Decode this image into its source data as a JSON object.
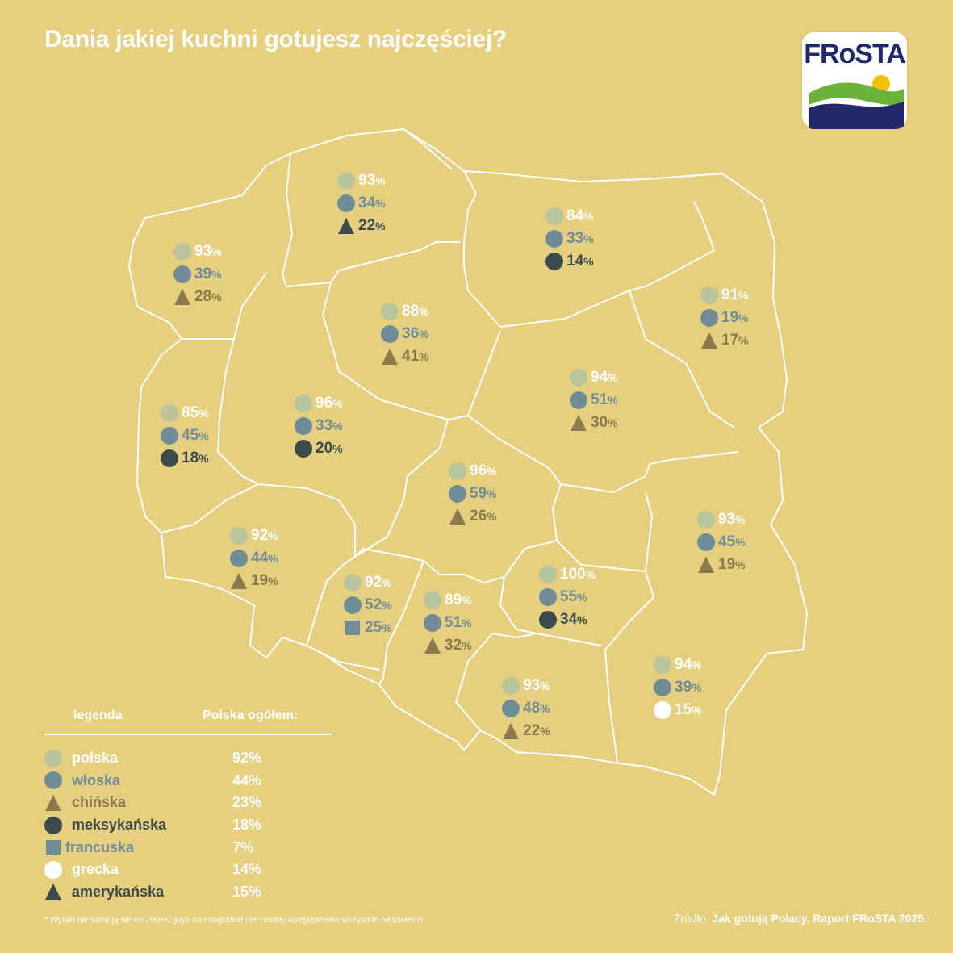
{
  "title": "Dania jakiej kuchni gotujesz najczęściej?",
  "logo": {
    "text": "FRoSTA"
  },
  "colors": {
    "background": "#e6cf7f",
    "border": "#ffffff",
    "polska": "#b9c39c",
    "wloska": "#6f8c97",
    "chinska": "#8a7a4c",
    "meksykanska": "#3d4a4c",
    "francuska": "#6f8c97",
    "grecka": "#ffffff",
    "amerykanska": "#3d4a4c"
  },
  "cuisines": {
    "polska": {
      "label": "polska",
      "shape": "circle",
      "color": "#b9c39c",
      "text_color": "#ffffff"
    },
    "wloska": {
      "label": "włoska",
      "shape": "circle",
      "color": "#6f8c97",
      "text_color": "#6f8c97"
    },
    "chinska": {
      "label": "chińska",
      "shape": "triangle",
      "color": "#8a7a4c",
      "text_color": "#8a7a4c"
    },
    "meksykanska": {
      "label": "meksykańska",
      "shape": "circle",
      "color": "#3d4a4c",
      "text_color": "#3d4a4c"
    },
    "francuska": {
      "label": "francuska",
      "shape": "square",
      "color": "#6f8c97",
      "text_color": "#6f8c97"
    },
    "grecka": {
      "label": "grecka",
      "shape": "circle",
      "color": "#ffffff",
      "text_color": "#ffffff"
    },
    "amerykanska": {
      "label": "amerykańska",
      "shape": "triangle",
      "color": "#3d4a4c",
      "text_color": "#3d4a4c"
    }
  },
  "legend": {
    "header_left": "legenda",
    "header_right": "Polska ogółem:",
    "items": [
      {
        "key": "polska",
        "value": "92%"
      },
      {
        "key": "wloska",
        "value": "44%"
      },
      {
        "key": "chinska",
        "value": "23%"
      },
      {
        "key": "meksykanska",
        "value": "18%"
      },
      {
        "key": "francuska",
        "value": "7%"
      },
      {
        "key": "grecka",
        "value": "14%"
      },
      {
        "key": "amerykanska",
        "value": "15%"
      }
    ]
  },
  "regions": [
    {
      "id": "pomorskie",
      "stats": [
        [
          "polska",
          "93"
        ],
        [
          "wloska",
          "34"
        ],
        [
          "amerykanska",
          "22"
        ]
      ]
    },
    {
      "id": "zachodniopomorskie",
      "stats": [
        [
          "polska",
          "93"
        ],
        [
          "wloska",
          "39"
        ],
        [
          "chinska",
          "28"
        ]
      ]
    },
    {
      "id": "warminsko-mazurskie",
      "stats": [
        [
          "polska",
          "84"
        ],
        [
          "wloska",
          "33"
        ],
        [
          "meksykanska",
          "14"
        ]
      ]
    },
    {
      "id": "podlaskie",
      "stats": [
        [
          "polska",
          "91"
        ],
        [
          "wloska",
          "19"
        ],
        [
          "chinska",
          "17"
        ]
      ]
    },
    {
      "id": "kujawsko-pomorskie",
      "stats": [
        [
          "polska",
          "88"
        ],
        [
          "wloska",
          "36"
        ],
        [
          "chinska",
          "41"
        ]
      ]
    },
    {
      "id": "mazowieckie",
      "stats": [
        [
          "polska",
          "94"
        ],
        [
          "wloska",
          "51"
        ],
        [
          "chinska",
          "30"
        ]
      ]
    },
    {
      "id": "lubuskie",
      "stats": [
        [
          "polska",
          "85"
        ],
        [
          "wloska",
          "45"
        ],
        [
          "meksykanska",
          "18"
        ]
      ]
    },
    {
      "id": "wielkopolskie",
      "stats": [
        [
          "polska",
          "96"
        ],
        [
          "wloska",
          "33"
        ],
        [
          "meksykanska",
          "20"
        ]
      ]
    },
    {
      "id": "lodzkie",
      "stats": [
        [
          "polska",
          "96"
        ],
        [
          "wloska",
          "59"
        ],
        [
          "chinska",
          "26"
        ]
      ]
    },
    {
      "id": "lubelskie",
      "stats": [
        [
          "polska",
          "93"
        ],
        [
          "wloska",
          "45"
        ],
        [
          "chinska",
          "19"
        ]
      ]
    },
    {
      "id": "dolnoslaskie",
      "stats": [
        [
          "polska",
          "92"
        ],
        [
          "wloska",
          "44"
        ],
        [
          "chinska",
          "19"
        ]
      ]
    },
    {
      "id": "opolskie",
      "stats": [
        [
          "polska",
          "92"
        ],
        [
          "wloska",
          "52"
        ],
        [
          "francuska",
          "25"
        ]
      ]
    },
    {
      "id": "slaskie",
      "stats": [
        [
          "polska",
          "89"
        ],
        [
          "wloska",
          "51"
        ],
        [
          "chinska",
          "32"
        ]
      ]
    },
    {
      "id": "swietokrzyskie",
      "stats": [
        [
          "polska",
          "100"
        ],
        [
          "wloska",
          "55"
        ],
        [
          "meksykanska",
          "34"
        ]
      ]
    },
    {
      "id": "malopolskie",
      "stats": [
        [
          "polska",
          "93"
        ],
        [
          "wloska",
          "48"
        ],
        [
          "chinska",
          "22"
        ]
      ]
    },
    {
      "id": "podkarpackie",
      "stats": [
        [
          "polska",
          "94"
        ],
        [
          "wloska",
          "39"
        ],
        [
          "grecka",
          "15"
        ]
      ]
    }
  ],
  "footnote": "* Wyniki nie sumują się do 100%, gdyż na infografice nie zostały uwzględnione wszystkie odpowiedzi",
  "source": {
    "prefix": "Źródło:",
    "text": "Jak gotują Polacy. Raport FRoSTA 2025."
  }
}
